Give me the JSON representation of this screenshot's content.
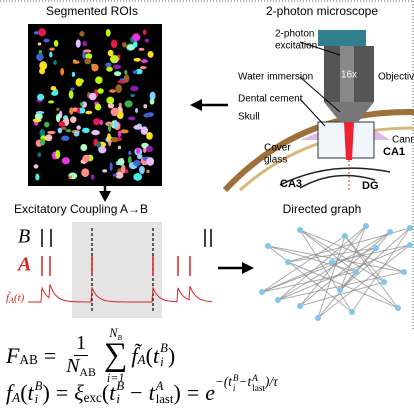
{
  "panels": {
    "rois": {
      "title": "Segmented ROIs"
    },
    "microscope": {
      "title": "2-photon microscope",
      "labels": {
        "excitation_1": "2-photon",
        "excitation_2": "excitation",
        "magnification": "16x",
        "water": "Water immersion",
        "objective": "Objectiv",
        "cement": "Dental cement",
        "skull": "Skull",
        "cover_1": "Cover",
        "cover_2": "glass",
        "cannula": "Cann",
        "ca1": "CA1",
        "ca3": "CA3",
        "dg": "DG"
      }
    },
    "coupling": {
      "title": "Excitatory Coupling A→B",
      "row_b": "B",
      "row_a": "A",
      "trace": "f̃",
      "trace_sub": "A",
      "trace_arg": "(t)"
    },
    "graph": {
      "title": "Directed graph"
    }
  },
  "equation_1": {
    "lhs": "F",
    "lhs_sub": "AB",
    "equals": "=",
    "numerator": "1",
    "denominator": "N",
    "denominator_sub": "AB",
    "sum": "∑",
    "sum_upper": "N",
    "sum_upper_sub": "B",
    "sum_lower": "i=1",
    "func": "f̃",
    "func_sub": "A",
    "open": "(",
    "var": "t",
    "var_sup": "B",
    "var_sub": "i",
    "close": ")"
  },
  "equation_2": {
    "func": "f",
    "func_sub": "A",
    "open": "(",
    "var": "t",
    "var_sup": "B",
    "var_sub": "i",
    "close": ")",
    "equals_1": "=",
    "kernel": "ξ",
    "kernel_sub": "exc",
    "open_2": "(",
    "t1": "t",
    "t1_sup": "B",
    "t1_sub": "i",
    "minus": "−",
    "t2": "t",
    "t2_sup": "A",
    "t2_sub": "last",
    "close_2": ")",
    "equals_2": "=",
    "exp": "e",
    "exp_open": "−(",
    "exp_t1": "t",
    "exp_t1_sup": "B",
    "exp_t1_sub": "i",
    "exp_minus": "−",
    "exp_t2": "t",
    "exp_t2_sup": "A",
    "exp_t2_sub": "last",
    "exp_close": ")/τ"
  }
}
